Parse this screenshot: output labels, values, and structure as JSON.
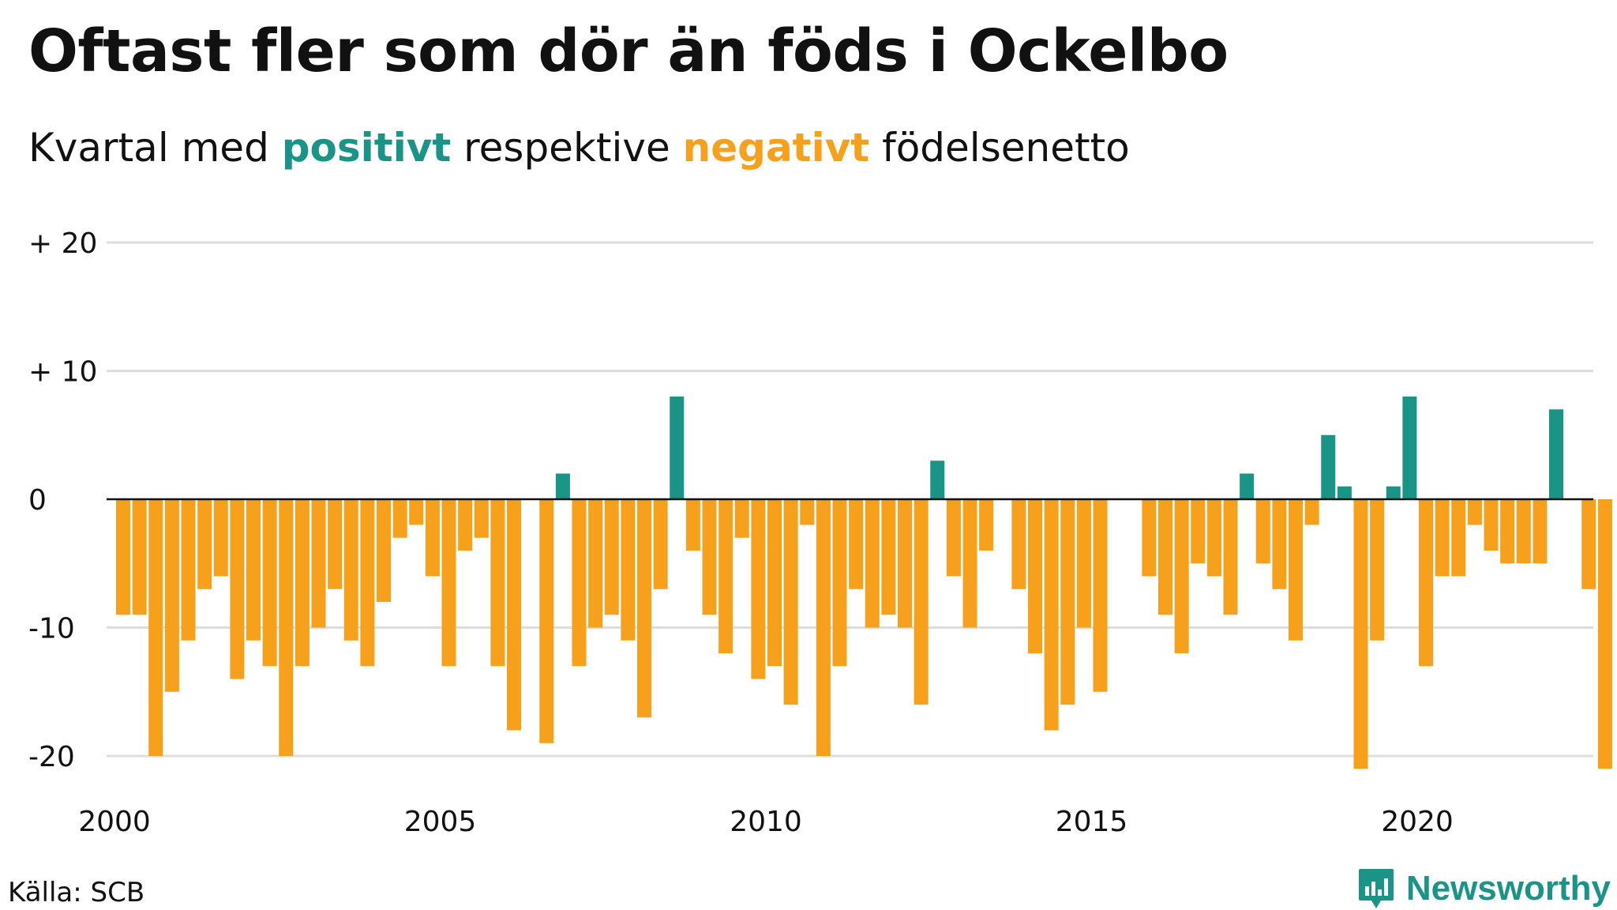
{
  "title": "Oftast fler som dör än föds i Ockelbo",
  "subtitle": {
    "prefix": "Kvartal med ",
    "positive": "positivt",
    "middle": " respektive ",
    "negative": "negativt",
    "suffix": " födelsenetto"
  },
  "source": "Källa: SCB",
  "logo": {
    "text": "Newsworthy",
    "icon": "newsworthy-logo-icon"
  },
  "colors": {
    "positive": "#199486",
    "negative": "#f7a01c",
    "grid": "#dddddd",
    "zero": "#111111"
  },
  "chart_data": {
    "type": "bar",
    "title": "Oftast fler som dör än föds i Ockelbo",
    "subtitle": "Kvartal med positivt respektive negativt födelsenetto",
    "ylim": [
      -20,
      20
    ],
    "ylim_note": "values at -21 extend slightly below the -20 gridline",
    "y_ticks": [
      {
        "value": 20,
        "label": "+ 20"
      },
      {
        "value": 10,
        "label": "+ 10"
      },
      {
        "value": 0,
        "label": "0"
      },
      {
        "value": -10,
        "label": "-10"
      },
      {
        "value": -20,
        "label": "-20"
      }
    ],
    "x_ticks": [
      {
        "value": 2000,
        "label": "2000"
      },
      {
        "value": 2005,
        "label": "2005"
      },
      {
        "value": 2010,
        "label": "2010"
      },
      {
        "value": 2015,
        "label": "2015"
      },
      {
        "value": 2020,
        "label": "2020"
      }
    ],
    "x_start": 2000,
    "quarters_per_year": 4,
    "grid": true,
    "legend": "none (colors explained in subtitle)",
    "values": [
      -9,
      -9,
      -20,
      -15,
      -11,
      -7,
      -6,
      -14,
      -11,
      -13,
      -20,
      -13,
      -10,
      -7,
      -11,
      -13,
      -8,
      -3,
      -2,
      -6,
      -13,
      -4,
      -3,
      -13,
      -18,
      0,
      -19,
      2,
      -13,
      -10,
      -9,
      -11,
      -17,
      -7,
      8,
      -4,
      -9,
      -12,
      -3,
      -14,
      -13,
      -16,
      -2,
      -20,
      -13,
      -7,
      -10,
      -9,
      -10,
      -16,
      3,
      -6,
      -10,
      -4,
      0,
      -7,
      -12,
      -18,
      -16,
      -10,
      -15,
      0,
      0,
      -6,
      -9,
      -12,
      -5,
      -6,
      -9,
      2,
      -5,
      -7,
      -11,
      -2,
      5,
      1,
      -21,
      -11,
      1,
      8,
      -13,
      -6,
      -6,
      -2,
      -4,
      -5,
      -5,
      -5,
      7,
      0,
      -7,
      -21
    ]
  }
}
